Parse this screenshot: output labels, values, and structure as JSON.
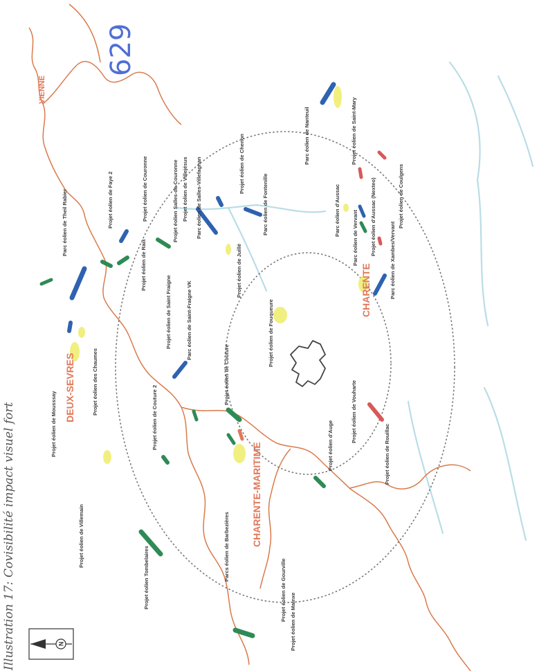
{
  "caption": "Illustration 17: Covisibilité impact visuel fort",
  "handwritten_annotation": "629",
  "departments": {
    "vienne": "VIENNE",
    "deux_sevres": "DEUX-SEVRES",
    "charente_maritime": "CHARENTE-MARITIME",
    "charente": "CHARENTE"
  },
  "projects": [
    "Projet éolien de Mousssay",
    "Parc éolien de Theil Rabier",
    "Projet éolien de Faye 2",
    "Projet éolien des Chaumes",
    "Projet éolien de Raix",
    "Projet éolien de Couronne",
    "Projet éolien de Saint Fraigne",
    "Parc éolien de Saint-Fraigne VK",
    "Projet éolien de Couture 2",
    "Projet éolien de Couture",
    "Projet éolien de Villemain",
    "Projet éolien de Fouqueure",
    "Projet éolien de Vouharte",
    "Projet éolien d'Auge",
    "Projet éolien de Rouillac",
    "Parcs éolien de Barbezières",
    "Projet éolien Tombelaires",
    "Projet éolien de Gourville",
    "Projet éolien de Mainxe",
    "Projet éolien de Juillé",
    "Parc éolien de Fontenille",
    "Projet éolien de Chenon",
    "Parc éolien de Salles-Villefagnan",
    "Projet éolien de Villejésus",
    "Projet éolien Salles-de-Couronne",
    "Parc éolien de Nanteuil",
    "Parc éolien d'Aussac",
    "Parc éolien de Vervant",
    "Projet éolien d'Aussac (Nexteo)",
    "Projet éolien de Saint-Mary",
    "Parc éolien de Xambes/Vervant",
    "Projet éolien de Coulgens"
  ],
  "colors": {
    "boundary": "#d97a4a",
    "river": "#b9dde6",
    "parc_blue": "#2f62b0",
    "projet_green": "#2f8a55",
    "projet_red": "#d8595a",
    "yellow": "#ecea55",
    "circle": "#777777"
  },
  "icons": [
    "north-arrow-icon"
  ]
}
